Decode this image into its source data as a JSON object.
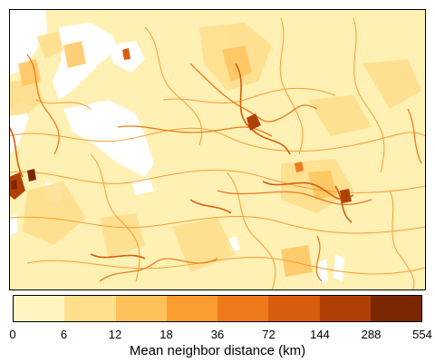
{
  "legend": {
    "title": "Mean neighbor distance (km)",
    "breaks": [
      "0",
      "6",
      "12",
      "18",
      "36",
      "72",
      "144",
      "288",
      "554"
    ],
    "colors": [
      "#fff5c0",
      "#ffde8c",
      "#ffc25a",
      "#fb9d31",
      "#ef7a1c",
      "#d85d0d",
      "#b04106",
      "#7c2704"
    ]
  },
  "map": {
    "background_color": "#fff0b4",
    "nodata_color": "#ffffff"
  }
}
